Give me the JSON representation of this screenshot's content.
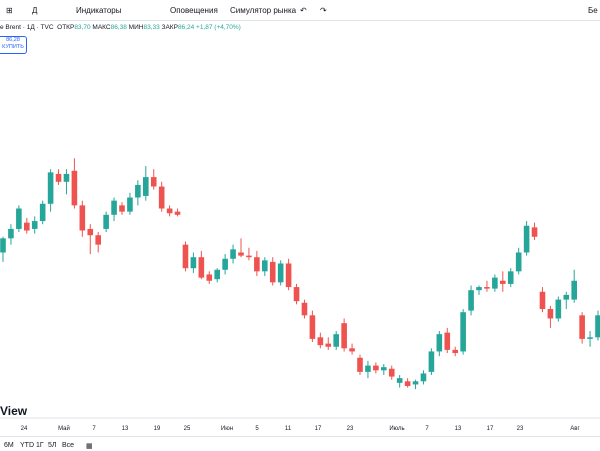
{
  "toolbar": {
    "timeframe": "Д",
    "buttons": [
      "Индикаторы",
      "Оповещения",
      "Симулятор рынка"
    ],
    "right_cut": "Бе"
  },
  "legend": {
    "symbol": "e Brent · 1Д · TVC",
    "open_label": "ОТКР",
    "open": "83,70",
    "high_label": "МАКС",
    "high": "86,38",
    "low_label": "МИН",
    "low": "83,33",
    "close_label": "ЗАКР",
    "close": "86,24",
    "change": "+1,87 (+4,70%)"
  },
  "buy": {
    "price": "86,28",
    "label": "КУПИТЬ"
  },
  "watermark": "View",
  "ranges": [
    "6М",
    "YTD",
    "1Г",
    "5Л",
    "Все"
  ],
  "chart_data": {
    "type": "candlestick",
    "up_color": "#26a69a",
    "down_color": "#ef5350",
    "ylim": [
      73.7,
      99.8
    ],
    "x_labels": [
      "24",
      "Май",
      "7",
      "13",
      "19",
      "25",
      "Июн",
      "5",
      "11",
      "17",
      "23",
      "Июль",
      "7",
      "13",
      "17",
      "23",
      "Авг"
    ],
    "open": [
      85.0,
      85.9,
      86.5,
      86.9,
      86.5,
      87.0,
      88.1,
      90.0,
      89.5,
      90.2,
      88.0,
      86.5,
      86.1,
      86.5,
      87.4,
      88.0,
      87.6,
      88.5,
      88.6,
      89.8,
      89.2,
      87.8,
      87.6,
      85.5,
      84.0,
      84.7,
      83.6,
      83.3,
      83.9,
      84.6,
      85.0,
      84.8,
      84.7,
      83.8,
      84.4,
      83.1,
      84.3,
      82.8,
      81.8,
      81.0,
      79.6,
      79.2,
      79.0,
      80.5,
      78.9,
      78.3,
      77.4,
      77.8,
      77.5,
      77.6,
      76.7,
      76.8,
      76.6,
      76.8,
      77.4,
      78.7,
      79.9,
      78.8,
      78.7,
      81.3,
      82.6,
      82.8,
      82.7,
      83.2,
      83.0,
      83.8,
      85.0,
      86.6,
      82.5,
      81.4,
      80.8,
      82.0,
      82.0,
      81.0,
      79.5,
      79.6
    ],
    "high": [
      86.0,
      86.8,
      88.0,
      87.2,
      87.3,
      88.3,
      90.3,
      90.3,
      90.3,
      91.0,
      88.3,
      86.8,
      86.3,
      87.6,
      88.5,
      88.2,
      88.8,
      89.6,
      90.5,
      90.3,
      89.5,
      88.0,
      87.8,
      85.7,
      85.0,
      85.1,
      83.8,
      84.0,
      84.9,
      85.5,
      85.9,
      85.3,
      85.1,
      84.7,
      84.7,
      84.5,
      84.6,
      83.0,
      82.0,
      81.3,
      79.9,
      79.6,
      80.0,
      80.8,
      79.2,
      78.5,
      78.1,
      78.0,
      77.9,
      77.8,
      77.2,
      77.0,
      76.9,
      77.5,
      78.9,
      80.0,
      80.2,
      79.0,
      81.4,
      82.9,
      82.9,
      83.2,
      83.6,
      83.8,
      84.0,
      85.3,
      87.0,
      86.9,
      82.8,
      81.6,
      82.2,
      82.5,
      83.9,
      81.2,
      80.0,
      81.3
    ],
    "low": [
      84.4,
      85.5,
      86.3,
      86.2,
      86.2,
      86.8,
      87.6,
      89.3,
      88.7,
      87.8,
      86.0,
      84.9,
      85.0,
      86.3,
      87.0,
      87.4,
      87.4,
      88.0,
      88.3,
      89.0,
      87.6,
      87.3,
      87.3,
      83.8,
      83.7,
      83.3,
      83.0,
      83.1,
      83.6,
      84.3,
      84.7,
      84.5,
      83.5,
      83.5,
      82.9,
      82.9,
      82.6,
      81.7,
      80.8,
      79.3,
      78.9,
      78.8,
      78.8,
      78.7,
      78.5,
      77.2,
      77.0,
      77.3,
      77.2,
      76.9,
      76.4,
      76.4,
      76.3,
      76.6,
      77.2,
      78.4,
      78.6,
      78.4,
      78.5,
      81.0,
      82.3,
      82.5,
      82.5,
      82.5,
      82.8,
      83.6,
      84.8,
      85.8,
      81.2,
      80.2,
      80.6,
      81.4,
      81.8,
      79.2,
      79.0,
      79.4
    ],
    "close": [
      85.9,
      86.5,
      87.8,
      86.4,
      87.0,
      88.1,
      90.1,
      89.5,
      90.0,
      88.0,
      86.4,
      86.1,
      85.5,
      87.4,
      88.3,
      87.6,
      88.5,
      89.3,
      89.8,
      89.2,
      87.8,
      87.5,
      87.4,
      84.0,
      84.7,
      83.4,
      83.2,
      83.9,
      84.6,
      85.2,
      84.8,
      84.7,
      83.8,
      84.5,
      83.1,
      84.3,
      82.8,
      81.9,
      81.0,
      79.5,
      79.1,
      79.0,
      79.8,
      78.9,
      78.7,
      77.4,
      77.8,
      77.5,
      77.7,
      77.1,
      77.0,
      76.5,
      76.8,
      77.3,
      78.7,
      79.8,
      78.8,
      78.6,
      81.2,
      82.6,
      82.8,
      82.7,
      83.4,
      83.0,
      83.8,
      85.0,
      86.7,
      86.0,
      81.4,
      80.8,
      82.0,
      82.3,
      83.2,
      79.5,
      79.6,
      81.0
    ]
  }
}
